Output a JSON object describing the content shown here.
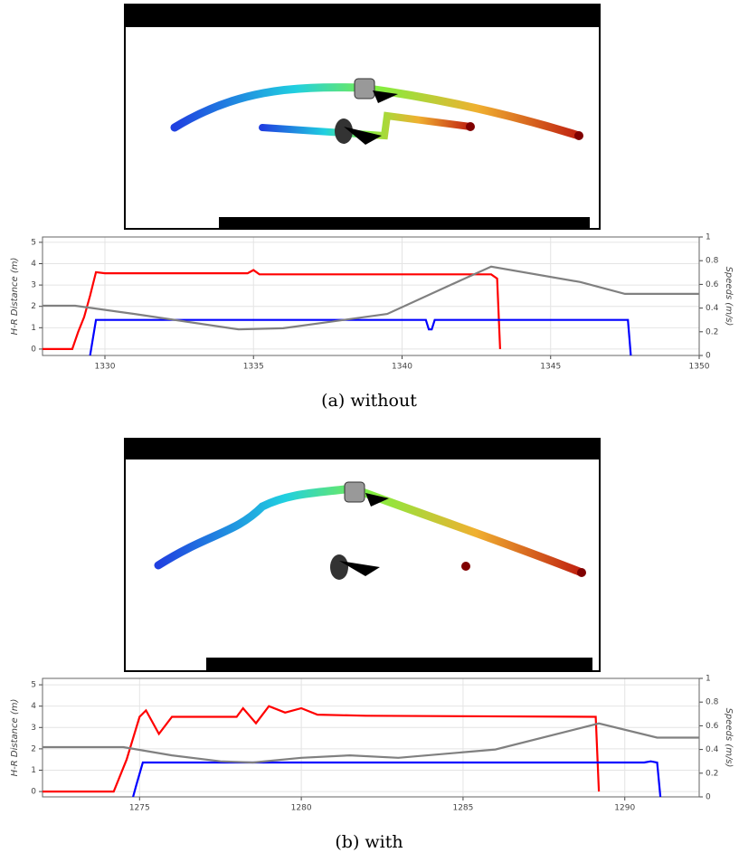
{
  "chart_data": [
    {
      "type": "line",
      "caption": "(a) without",
      "ylabel": "H-R Distance (m)",
      "y2label": "Speeds (m/s)",
      "xlim": [
        1327.9,
        1350
      ],
      "xticks": [
        1330,
        1335,
        1340,
        1345,
        1350
      ],
      "ylim": [
        -0.3,
        5.25
      ],
      "yticks": [
        0,
        1,
        2,
        3,
        4,
        5
      ],
      "y2lim": [
        0,
        1
      ],
      "y2ticks": [
        0,
        0.2,
        0.4,
        0.6,
        0.8,
        1
      ],
      "grid": true,
      "series": [
        {
          "color": "#ff0000",
          "axis": "y",
          "x": [
            1327.9,
            1328.9,
            1329.1,
            1329.3,
            1329.5,
            1329.7,
            1330,
            1334.8,
            1335,
            1335.2,
            1343,
            1343.2,
            1343.3
          ],
          "values": [
            0,
            0,
            0.8,
            1.5,
            2.5,
            3.6,
            3.55,
            3.55,
            3.7,
            3.5,
            3.5,
            3.3,
            0
          ]
        },
        {
          "color": "#0000ff",
          "axis": "y2",
          "x": [
            1329.5,
            1329.7,
            1340.8,
            1340.9,
            1341,
            1341.1,
            1347.6,
            1347.7
          ],
          "values": [
            0,
            0.3,
            0.3,
            0.22,
            0.22,
            0.3,
            0.3,
            0
          ]
        },
        {
          "color": "#808080",
          "axis": "y2",
          "x": [
            1327.9,
            1329,
            1331,
            1334.5,
            1336,
            1339.5,
            1341.5,
            1343,
            1346,
            1347.5,
            1350
          ],
          "values": [
            0.42,
            0.42,
            0.35,
            0.22,
            0.23,
            0.35,
            0.58,
            0.75,
            0.62,
            0.52,
            0.52
          ]
        }
      ]
    },
    {
      "type": "line",
      "caption": "(b) with",
      "ylabel": "H-R Distance (m)",
      "y2label": "Speeds (m/s)",
      "xlim": [
        1272,
        1292.3
      ],
      "xticks": [
        1275,
        1280,
        1285,
        1290
      ],
      "ylim": [
        -0.25,
        5.3
      ],
      "yticks": [
        0,
        1,
        2,
        3,
        4,
        5
      ],
      "y2lim": [
        0,
        1
      ],
      "y2ticks": [
        0,
        0.2,
        0.4,
        0.6,
        0.8,
        1
      ],
      "grid": true,
      "series": [
        {
          "color": "#ff0000",
          "axis": "y",
          "x": [
            1272,
            1274.2,
            1274.6,
            1275,
            1275.2,
            1275.6,
            1276,
            1278,
            1278.2,
            1278.6,
            1279,
            1279.5,
            1280,
            1280.5,
            1282,
            1289.1,
            1289.2
          ],
          "values": [
            0,
            0,
            1.5,
            3.5,
            3.8,
            2.7,
            3.5,
            3.5,
            3.9,
            3.2,
            4.0,
            3.7,
            3.9,
            3.6,
            3.55,
            3.5,
            0
          ]
        },
        {
          "color": "#0000ff",
          "axis": "y2",
          "x": [
            1274.8,
            1274.9,
            1275.1,
            1290.6,
            1290.8,
            1291,
            1291.1
          ],
          "values": [
            0,
            0.1,
            0.29,
            0.29,
            0.3,
            0.29,
            0
          ]
        },
        {
          "color": "#808080",
          "axis": "y2",
          "x": [
            1272,
            1274.5,
            1276,
            1277.5,
            1278.5,
            1280,
            1281.5,
            1283,
            1286,
            1289.2,
            1291,
            1292.3
          ],
          "values": [
            0.42,
            0.42,
            0.35,
            0.3,
            0.29,
            0.33,
            0.35,
            0.33,
            0.4,
            0.62,
            0.5,
            0.5
          ]
        }
      ]
    }
  ]
}
